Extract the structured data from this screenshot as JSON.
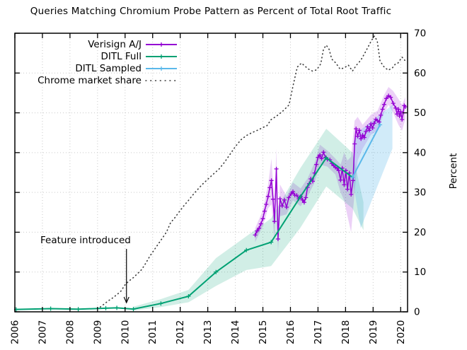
{
  "title": "Queries Matching Chromium Probe Pattern as Percent of Total Root Traffic",
  "annotation": {
    "label": "Feature introduced",
    "x": 2010.05,
    "y_from": 15.8,
    "y_to": 2.3
  },
  "colors": {
    "verisign": "#9400d3",
    "ditl_full": "#00a173",
    "ditl_sampled": "#5bb8ea",
    "chrome": "#3a3a3a",
    "grid": "#c9c9c9",
    "border": "#000000"
  },
  "chart_data": {
    "type": "line",
    "title": "Queries Matching Chromium Probe Pattern as Percent of Total Root Traffic",
    "xlabel": "",
    "ylabel": "Percent",
    "xlim": [
      2006,
      2020.25
    ],
    "ylim": [
      0,
      70
    ],
    "xticks": [
      2006,
      2007,
      2008,
      2009,
      2010,
      2011,
      2012,
      2013,
      2014,
      2015,
      2016,
      2017,
      2018,
      2019,
      2020
    ],
    "yticks": [
      0,
      10,
      20,
      30,
      40,
      50,
      60,
      70
    ],
    "grid": true,
    "y_axis_side": "right",
    "legend_position": "top-left",
    "series": [
      {
        "name": "Verisign A/J",
        "color": "#9400d3",
        "style": "solid-marker",
        "points": [
          [
            2014.72,
            19.3
          ],
          [
            2014.79,
            20.3
          ],
          [
            2014.86,
            21.0
          ],
          [
            2014.93,
            22.1
          ],
          [
            2015.0,
            23.4
          ],
          [
            2015.06,
            25.3
          ],
          [
            2015.12,
            27.0
          ],
          [
            2015.19,
            29.0
          ],
          [
            2015.25,
            31.2
          ],
          [
            2015.31,
            33.0
          ],
          [
            2015.37,
            28.3
          ],
          [
            2015.42,
            22.7
          ],
          [
            2015.49,
            35.9
          ],
          [
            2015.55,
            18.3
          ],
          [
            2015.62,
            28.4
          ],
          [
            2015.7,
            26.6
          ],
          [
            2015.78,
            28.1
          ],
          [
            2015.86,
            26.3
          ],
          [
            2015.94,
            28.7
          ],
          [
            2016.02,
            29.6
          ],
          [
            2016.09,
            30.2
          ],
          [
            2016.16,
            29.3
          ],
          [
            2016.23,
            29.3
          ],
          [
            2016.3,
            28.4
          ],
          [
            2016.37,
            29.0
          ],
          [
            2016.44,
            28.1
          ],
          [
            2016.5,
            27.5
          ],
          [
            2016.56,
            28.7
          ],
          [
            2016.62,
            31.3
          ],
          [
            2016.68,
            32.2
          ],
          [
            2016.74,
            33.4
          ],
          [
            2016.81,
            32.8
          ],
          [
            2016.88,
            34.9
          ],
          [
            2016.94,
            37.0
          ],
          [
            2017.0,
            38.8
          ],
          [
            2017.07,
            39.4
          ],
          [
            2017.13,
            38.5
          ],
          [
            2017.2,
            40.1
          ],
          [
            2017.27,
            38.8
          ],
          [
            2017.34,
            38.3
          ],
          [
            2017.43,
            38.2
          ],
          [
            2017.5,
            37.3
          ],
          [
            2017.57,
            36.7
          ],
          [
            2017.63,
            36.3
          ],
          [
            2017.69,
            36.1
          ],
          [
            2017.75,
            35.5
          ],
          [
            2017.82,
            33.1
          ],
          [
            2017.88,
            36.1
          ],
          [
            2017.95,
            31.9
          ],
          [
            2018.01,
            35.5
          ],
          [
            2018.07,
            30.8
          ],
          [
            2018.14,
            34.9
          ],
          [
            2018.2,
            29.5
          ],
          [
            2018.27,
            33.0
          ],
          [
            2018.33,
            42.2
          ],
          [
            2018.38,
            46.0
          ],
          [
            2018.44,
            44.1
          ],
          [
            2018.5,
            45.6
          ],
          [
            2018.56,
            43.5
          ],
          [
            2018.62,
            44.4
          ],
          [
            2018.68,
            43.8
          ],
          [
            2018.74,
            45.3
          ],
          [
            2018.8,
            46.5
          ],
          [
            2018.86,
            45.6
          ],
          [
            2018.92,
            47.2
          ],
          [
            2018.98,
            46.2
          ],
          [
            2019.04,
            47.4
          ],
          [
            2019.1,
            48.4
          ],
          [
            2019.16,
            48.0
          ],
          [
            2019.22,
            47.7
          ],
          [
            2019.28,
            49.4
          ],
          [
            2019.34,
            50.9
          ],
          [
            2019.4,
            52.1
          ],
          [
            2019.48,
            53.6
          ],
          [
            2019.56,
            54.3
          ],
          [
            2019.64,
            53.9
          ],
          [
            2019.73,
            52.4
          ],
          [
            2019.82,
            51.2
          ],
          [
            2019.87,
            49.7
          ],
          [
            2019.92,
            50.9
          ],
          [
            2019.96,
            49.2
          ],
          [
            2020.0,
            50.3
          ],
          [
            2020.05,
            48.3
          ],
          [
            2020.09,
            50.0
          ],
          [
            2020.13,
            51.8
          ],
          [
            2020.17,
            51.5
          ]
        ],
        "band": {
          "lower": [
            [
              2014.72,
              17.5
            ],
            [
              2015.0,
              21.5
            ],
            [
              2015.19,
              26
            ],
            [
              2015.31,
              27
            ],
            [
              2015.42,
              18
            ],
            [
              2015.49,
              28
            ],
            [
              2015.55,
              15
            ],
            [
              2015.62,
              24
            ],
            [
              2015.86,
              24.5
            ],
            [
              2016.09,
              28
            ],
            [
              2016.37,
              26.5
            ],
            [
              2016.62,
              29
            ],
            [
              2016.88,
              32.5
            ],
            [
              2017.07,
              37
            ],
            [
              2017.34,
              36.5
            ],
            [
              2017.63,
              34.5
            ],
            [
              2017.82,
              30
            ],
            [
              2017.95,
              28
            ],
            [
              2018.07,
              24
            ],
            [
              2018.2,
              20
            ],
            [
              2018.33,
              30
            ],
            [
              2018.44,
              38
            ],
            [
              2018.62,
              41
            ],
            [
              2018.92,
              44.5
            ],
            [
              2019.16,
              45.5
            ],
            [
              2019.4,
              50
            ],
            [
              2019.56,
              52
            ],
            [
              2019.73,
              50
            ],
            [
              2019.92,
              47
            ],
            [
              2020.05,
              45.5
            ],
            [
              2020.17,
              48.5
            ]
          ],
          "upper": [
            [
              2014.72,
              21
            ],
            [
              2015.0,
              25.5
            ],
            [
              2015.19,
              32
            ],
            [
              2015.31,
              38.5
            ],
            [
              2015.42,
              27
            ],
            [
              2015.49,
              41
            ],
            [
              2015.55,
              22
            ],
            [
              2015.62,
              32
            ],
            [
              2015.86,
              29
            ],
            [
              2016.09,
              32.5
            ],
            [
              2016.37,
              31
            ],
            [
              2016.62,
              33.5
            ],
            [
              2016.88,
              37.5
            ],
            [
              2017.07,
              42
            ],
            [
              2017.34,
              40.5
            ],
            [
              2017.63,
              38.5
            ],
            [
              2017.82,
              37
            ],
            [
              2017.95,
              40
            ],
            [
              2018.07,
              38
            ],
            [
              2018.2,
              39
            ],
            [
              2018.33,
              48
            ],
            [
              2018.44,
              49
            ],
            [
              2018.62,
              47
            ],
            [
              2018.92,
              49.5
            ],
            [
              2019.16,
              50.5
            ],
            [
              2019.4,
              54.5
            ],
            [
              2019.56,
              56.5
            ],
            [
              2019.73,
              55.5
            ],
            [
              2019.92,
              53.5
            ],
            [
              2020.05,
              52
            ],
            [
              2020.17,
              54
            ]
          ]
        }
      },
      {
        "name": "DITL Full",
        "color": "#00a173",
        "style": "solid-marker",
        "points": [
          [
            2006.05,
            0.6
          ],
          [
            2007.3,
            0.8
          ],
          [
            2008.3,
            0.65
          ],
          [
            2009.3,
            0.9
          ],
          [
            2009.7,
            1.0
          ],
          [
            2010.3,
            0.7
          ],
          [
            2011.3,
            2.1
          ],
          [
            2012.3,
            3.9
          ],
          [
            2013.3,
            10.0
          ],
          [
            2014.4,
            15.5
          ],
          [
            2015.3,
            17.5
          ],
          [
            2016.35,
            28.8
          ],
          [
            2017.3,
            38.7
          ],
          [
            2018.25,
            33.8
          ]
        ],
        "band": {
          "lower": [
            [
              2010.3,
              0.3
            ],
            [
              2011.3,
              1.2
            ],
            [
              2012.3,
              2.4
            ],
            [
              2013.3,
              6.5
            ],
            [
              2014.4,
              10.5
            ],
            [
              2015.3,
              11.5
            ],
            [
              2016.35,
              21
            ],
            [
              2017.3,
              31.5
            ],
            [
              2018.25,
              26
            ],
            [
              2018.65,
              20.5
            ]
          ],
          "upper": [
            [
              2010.3,
              1.3
            ],
            [
              2011.3,
              3.2
            ],
            [
              2012.3,
              5.5
            ],
            [
              2013.3,
              13.5
            ],
            [
              2014.4,
              19
            ],
            [
              2015.3,
              23.5
            ],
            [
              2016.35,
              36
            ],
            [
              2017.3,
              46
            ],
            [
              2018.25,
              40
            ],
            [
              2018.65,
              27.5
            ]
          ]
        }
      },
      {
        "name": "DITL Sampled",
        "color": "#5bb8ea",
        "style": "solid-marker",
        "points": [
          [
            2018.25,
            33.8
          ],
          [
            2019.25,
            47.0
          ]
        ],
        "band": {
          "polygon": [
            [
              2018.25,
              33.5
            ],
            [
              2018.55,
              21
            ],
            [
              2019.7,
              41
            ],
            [
              2019.7,
              52
            ],
            [
              2018.6,
              46
            ],
            [
              2018.3,
              43
            ]
          ]
        }
      },
      {
        "name": "Chrome market share",
        "color": "#3a3a3a",
        "style": "dotted",
        "points": [
          [
            2009.1,
            1.2
          ],
          [
            2009.25,
            2.0
          ],
          [
            2009.4,
            2.8
          ],
          [
            2009.55,
            3.5
          ],
          [
            2009.7,
            4.3
          ],
          [
            2009.85,
            5.2
          ],
          [
            2010.0,
            6.8
          ],
          [
            2010.15,
            7.8
          ],
          [
            2010.3,
            8.6
          ],
          [
            2010.45,
            9.6
          ],
          [
            2010.6,
            10.6
          ],
          [
            2010.75,
            12.2
          ],
          [
            2010.9,
            14.0
          ],
          [
            2011.05,
            15.5
          ],
          [
            2011.2,
            17.0
          ],
          [
            2011.35,
            18.5
          ],
          [
            2011.5,
            20.0
          ],
          [
            2011.65,
            22.4
          ],
          [
            2011.8,
            23.6
          ],
          [
            2011.95,
            25.0
          ],
          [
            2012.15,
            26.8
          ],
          [
            2012.3,
            28.0
          ],
          [
            2012.45,
            29.3
          ],
          [
            2012.6,
            30.5
          ],
          [
            2012.8,
            32.0
          ],
          [
            2013.0,
            33.3
          ],
          [
            2013.2,
            34.6
          ],
          [
            2013.4,
            35.8
          ],
          [
            2013.6,
            37.5
          ],
          [
            2013.8,
            39.5
          ],
          [
            2014.0,
            41.5
          ],
          [
            2014.2,
            43.2
          ],
          [
            2014.4,
            44.3
          ],
          [
            2014.6,
            45.0
          ],
          [
            2014.8,
            45.6
          ],
          [
            2015.0,
            46.3
          ],
          [
            2015.15,
            46.8
          ],
          [
            2015.3,
            48.3
          ],
          [
            2015.5,
            49.2
          ],
          [
            2015.75,
            50.6
          ],
          [
            2015.95,
            52.0
          ],
          [
            2016.1,
            57.0
          ],
          [
            2016.25,
            61.5
          ],
          [
            2016.4,
            62.5
          ],
          [
            2016.5,
            61.9
          ],
          [
            2016.65,
            61.0
          ],
          [
            2016.8,
            60.5
          ],
          [
            2016.95,
            60.8
          ],
          [
            2017.1,
            62.3
          ],
          [
            2017.2,
            66.0
          ],
          [
            2017.3,
            67.0
          ],
          [
            2017.4,
            66.0
          ],
          [
            2017.5,
            63.5
          ],
          [
            2017.65,
            62.5
          ],
          [
            2017.8,
            61.0
          ],
          [
            2017.95,
            61.3
          ],
          [
            2018.1,
            62.0
          ],
          [
            2018.25,
            60.5
          ],
          [
            2018.4,
            62.0
          ],
          [
            2018.55,
            63.2
          ],
          [
            2018.7,
            65.0
          ],
          [
            2018.85,
            67.0
          ],
          [
            2018.95,
            68.3
          ],
          [
            2019.05,
            69.3
          ],
          [
            2019.15,
            68.0
          ],
          [
            2019.25,
            63.0
          ],
          [
            2019.4,
            61.5
          ],
          [
            2019.55,
            60.7
          ],
          [
            2019.7,
            61.3
          ],
          [
            2019.8,
            62.2
          ],
          [
            2019.9,
            62.5
          ],
          [
            2020.05,
            64.0
          ],
          [
            2020.15,
            63.2
          ]
        ]
      }
    ]
  }
}
